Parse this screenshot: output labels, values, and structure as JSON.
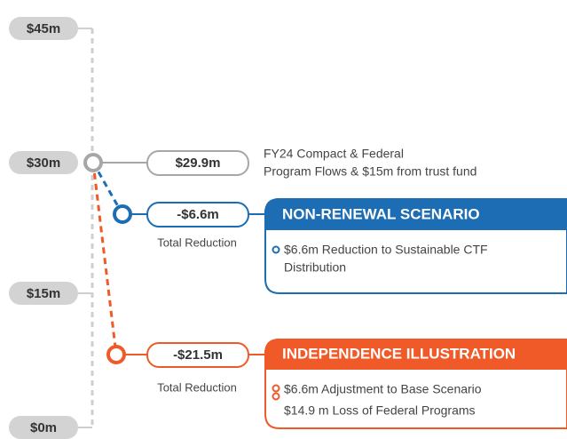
{
  "axis": {
    "labels": [
      "$45m",
      "$30m",
      "$15m",
      "$0m"
    ]
  },
  "baseline": {
    "value_label": "$29.9m",
    "description": [
      "FY24 Compact & Federal",
      "Program Flows & $15m from trust fund"
    ]
  },
  "scenarios": [
    {
      "value_label": "-$6.6m",
      "caption": "Total Reduction",
      "title": "NON-RENEWAL SCENARIO",
      "bullets": [
        [
          "$6.6m Reduction to Sustainable CTF",
          "Distribution"
        ]
      ]
    },
    {
      "value_label": "-$21.5m",
      "caption": "Total Reduction",
      "title": "INDEPENDENCE ILLUSTRATION",
      "bullets": [
        [
          "$6.6m Adjustment to Base Scenario"
        ],
        [
          "$14.9 m Loss of Federal Programs"
        ]
      ]
    }
  ]
}
